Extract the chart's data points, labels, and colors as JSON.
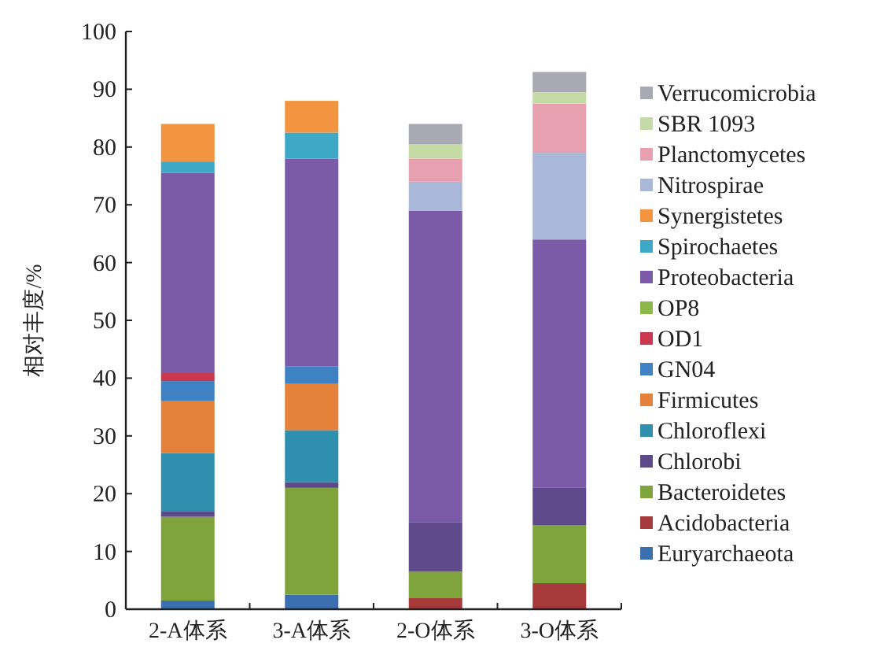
{
  "chart_data": {
    "type": "bar",
    "stacked": true,
    "ylabel": "相对丰度/%",
    "categories": [
      "2-A体系",
      "3-A体系",
      "2-O体系",
      "3-O体系"
    ],
    "ylim": [
      0,
      100
    ],
    "yticks": [
      0,
      10,
      20,
      30,
      40,
      50,
      60,
      70,
      80,
      90,
      100
    ],
    "grid": false,
    "legend": "right",
    "series": [
      {
        "name": "Euryarchaeota",
        "color": "#3a6fb0",
        "values": [
          1.5,
          2.5,
          0,
          0
        ]
      },
      {
        "name": "Acidobacteria",
        "color": "#a63a3a",
        "values": [
          0,
          0,
          2,
          4.5
        ]
      },
      {
        "name": "Bacteroidetes",
        "color": "#7fa43c",
        "values": [
          14.5,
          18.5,
          4.5,
          10
        ]
      },
      {
        "name": "Chlorobi",
        "color": "#5e4a8a",
        "values": [
          1,
          1,
          8.5,
          6.5
        ]
      },
      {
        "name": "Chloroflexi",
        "color": "#2e8fae",
        "values": [
          10,
          9,
          0,
          0
        ]
      },
      {
        "name": "Firmicutes",
        "color": "#e5813a",
        "values": [
          9,
          8,
          0,
          0
        ]
      },
      {
        "name": "GN04",
        "color": "#3f82c4",
        "values": [
          3.5,
          3,
          0,
          0
        ]
      },
      {
        "name": "OD1",
        "color": "#c9384e",
        "values": [
          1.5,
          0,
          0,
          0
        ]
      },
      {
        "name": "OP8",
        "color": "#8cb84a",
        "values": [
          0,
          0,
          0,
          0
        ]
      },
      {
        "name": "Proteobacteria",
        "color": "#7b5ba8",
        "values": [
          34.5,
          36,
          54,
          43
        ]
      },
      {
        "name": "Spirochaetes",
        "color": "#3ea9c6",
        "values": [
          2,
          4.5,
          0,
          0
        ]
      },
      {
        "name": "Synergistetes",
        "color": "#f39440",
        "values": [
          6.5,
          5.5,
          0,
          0
        ]
      },
      {
        "name": "Nitrospirae",
        "color": "#a9b8d8",
        "values": [
          0,
          0,
          5,
          15
        ]
      },
      {
        "name": "Planctomycetes",
        "color": "#e6a0b0",
        "values": [
          0,
          0,
          4,
          8.5
        ]
      },
      {
        "name": "SBR 1093",
        "color": "#c5dba5",
        "values": [
          0,
          0,
          2.5,
          2
        ]
      },
      {
        "name": "Verrucomicrobia",
        "color": "#a9a9b4",
        "values": [
          0,
          0,
          3.5,
          3.5
        ]
      }
    ]
  }
}
